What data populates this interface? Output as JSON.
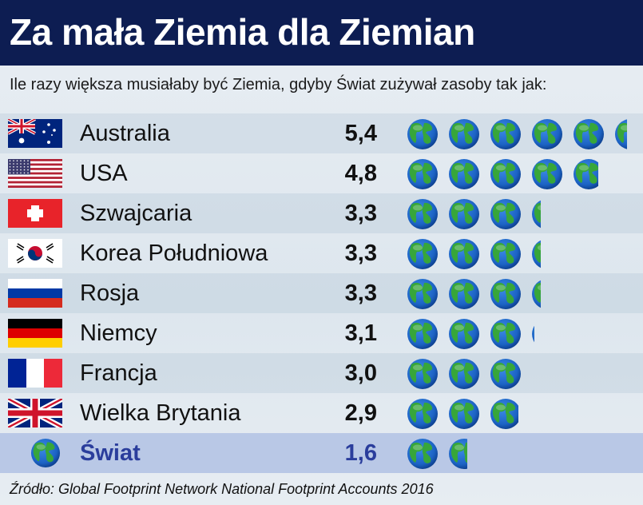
{
  "title": "Za mała Ziemia dla Ziemian",
  "subtitle": "Ile razy większa musiałaby być Ziemia, gdyby Świat zużywał zasoby tak jak:",
  "source": "Źródło: Global Footprint Network National Footprint Accounts 2016",
  "colors": {
    "header_bg": "#0d1d52",
    "world_row_bg": "#b9c8e6",
    "world_text": "#2a3d9c",
    "globe_water": "#1c63c4",
    "globe_land": "#37a63a"
  },
  "rows": [
    {
      "country": "Australia",
      "value": "5,4",
      "flag": "australia-flag"
    },
    {
      "country": "USA",
      "value": "4,8",
      "flag": "usa-flag"
    },
    {
      "country": "Szwajcaria",
      "value": "3,3",
      "flag": "switzerland-flag"
    },
    {
      "country": "Korea Południowa",
      "value": "3,3",
      "flag": "south-korea-flag"
    },
    {
      "country": "Rosja",
      "value": "3,3",
      "flag": "russia-flag"
    },
    {
      "country": "Niemcy",
      "value": "3,1",
      "flag": "germany-flag"
    },
    {
      "country": "Francja",
      "value": "3,0",
      "flag": "france-flag"
    },
    {
      "country": "Wielka Brytania",
      "value": "2,9",
      "flag": "uk-flag"
    },
    {
      "country": "Świat",
      "value": "1,6",
      "flag": "globe-icon"
    }
  ],
  "chart_data": {
    "type": "bar",
    "title": "Za mała Ziemia dla Ziemian",
    "subtitle": "Ile razy większa musiałaby być Ziemia, gdyby Świat zużywał zasoby tak jak:",
    "categories": [
      "Australia",
      "USA",
      "Szwajcaria",
      "Korea Południowa",
      "Rosja",
      "Niemcy",
      "Francja",
      "Wielka Brytania",
      "Świat"
    ],
    "values": [
      5.4,
      4.8,
      3.3,
      3.3,
      3.3,
      3.1,
      3.0,
      2.9,
      1.6
    ],
    "mark": "globe-icon",
    "orientation": "horizontal"
  }
}
